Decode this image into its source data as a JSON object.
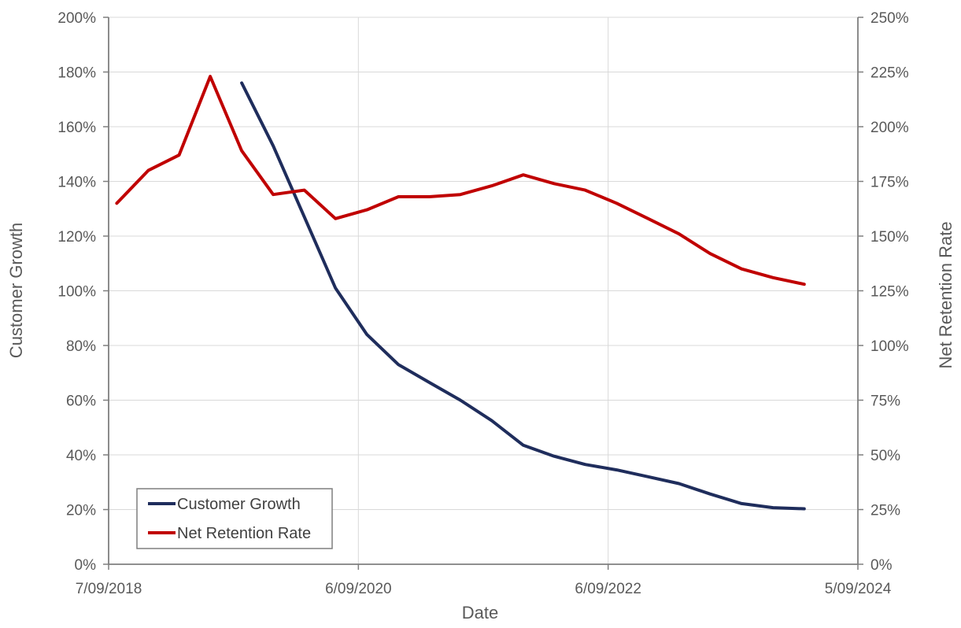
{
  "chart_data": {
    "type": "line",
    "xlabel": "Date",
    "ylabel": "Customer Growth",
    "y2label": "Net Retention Rate",
    "x_ticks": [
      "7/09/2018",
      "6/09/2020",
      "6/09/2022",
      "5/09/2024"
    ],
    "x_tick_dates": [
      "2018-09-07",
      "2020-09-06",
      "2022-09-06",
      "2024-09-05"
    ],
    "xlim": [
      "2018-09-07",
      "2024-09-05"
    ],
    "ylim": [
      0,
      2.0
    ],
    "y_ticks": [
      "0%",
      "20%",
      "40%",
      "60%",
      "80%",
      "100%",
      "120%",
      "140%",
      "160%",
      "180%",
      "200%"
    ],
    "y2lim": [
      0,
      2.5
    ],
    "y2_ticks": [
      "0%",
      "25%",
      "50%",
      "75%",
      "100%",
      "125%",
      "150%",
      "175%",
      "200%",
      "225%",
      "250%"
    ],
    "grid": {
      "vertical": true,
      "horizontal": true
    },
    "legend_position": "bottom-left",
    "series": [
      {
        "name": "Customer Growth",
        "axis": "left",
        "color": "#1f2d5c",
        "points": [
          [
            "2019-10-01",
            1.76
          ],
          [
            "2020-01-01",
            1.53
          ],
          [
            "2020-04-01",
            1.27
          ],
          [
            "2020-07-01",
            1.01
          ],
          [
            "2020-10-01",
            0.84
          ],
          [
            "2021-01-01",
            0.73
          ],
          [
            "2021-04-01",
            0.665
          ],
          [
            "2021-07-01",
            0.6
          ],
          [
            "2021-10-01",
            0.525
          ],
          [
            "2022-01-01",
            0.435
          ],
          [
            "2022-04-01",
            0.395
          ],
          [
            "2022-07-01",
            0.365
          ],
          [
            "2022-10-01",
            0.345
          ],
          [
            "2023-01-01",
            0.32
          ],
          [
            "2023-04-01",
            0.295
          ],
          [
            "2023-07-01",
            0.257
          ],
          [
            "2023-10-01",
            0.222
          ],
          [
            "2024-01-01",
            0.207
          ],
          [
            "2024-04-01",
            0.203
          ]
        ]
      },
      {
        "name": "Net Retention Rate",
        "axis": "right",
        "color": "#c00000",
        "points": [
          [
            "2018-10-01",
            1.65
          ],
          [
            "2019-01-01",
            1.8
          ],
          [
            "2019-04-01",
            1.87
          ],
          [
            "2019-07-01",
            2.23
          ],
          [
            "2019-10-01",
            1.89
          ],
          [
            "2020-01-01",
            1.69
          ],
          [
            "2020-04-01",
            1.71
          ],
          [
            "2020-07-01",
            1.58
          ],
          [
            "2020-10-01",
            1.62
          ],
          [
            "2021-01-01",
            1.68
          ],
          [
            "2021-04-01",
            1.68
          ],
          [
            "2021-07-01",
            1.69
          ],
          [
            "2021-10-01",
            1.73
          ],
          [
            "2022-01-01",
            1.78
          ],
          [
            "2022-04-01",
            1.74
          ],
          [
            "2022-07-01",
            1.71
          ],
          [
            "2022-10-01",
            1.65
          ],
          [
            "2023-01-01",
            1.58
          ],
          [
            "2023-04-01",
            1.51
          ],
          [
            "2023-07-01",
            1.42
          ],
          [
            "2023-10-01",
            1.35
          ],
          [
            "2024-01-01",
            1.31
          ],
          [
            "2024-04-01",
            1.28
          ]
        ]
      }
    ]
  }
}
